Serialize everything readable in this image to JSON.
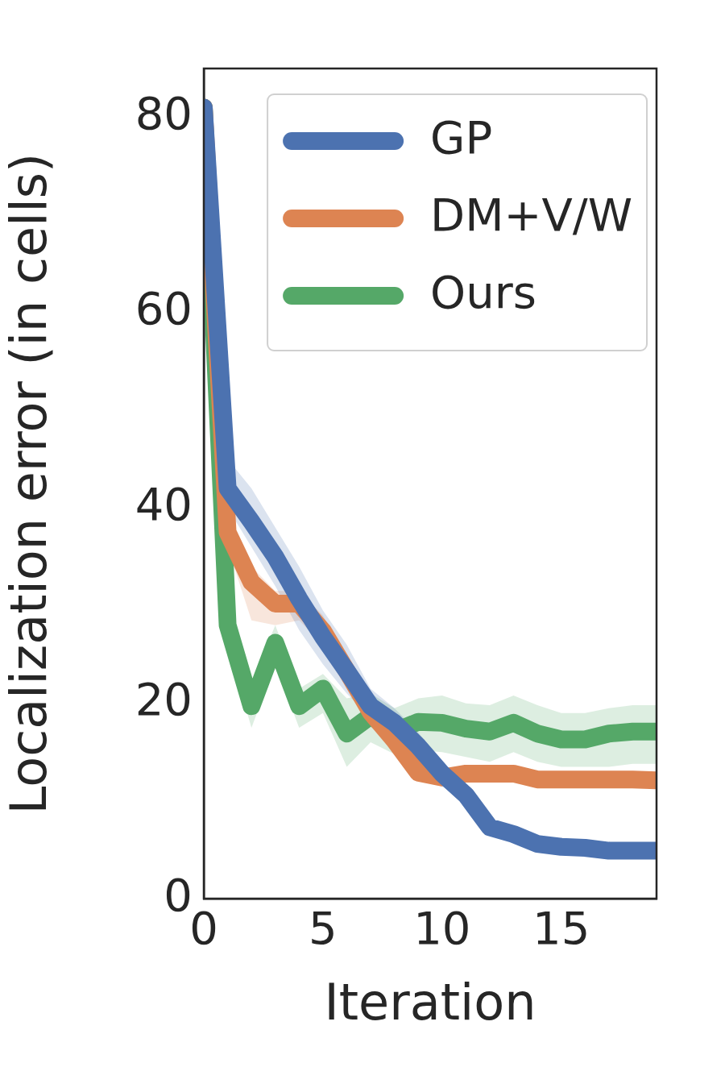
{
  "chart_data": {
    "type": "line",
    "xlabel": "Iteration",
    "ylabel": "Localization error (in cells)",
    "x": [
      0,
      1,
      2,
      3,
      4,
      5,
      6,
      7,
      8,
      9,
      10,
      11,
      12,
      13,
      14,
      15,
      16,
      17,
      18,
      19
    ],
    "xlim": [
      0,
      19
    ],
    "xticks": [
      0,
      5,
      10,
      15
    ],
    "ylim": [
      0,
      85
    ],
    "yticks": [
      0,
      20,
      40,
      60,
      80
    ],
    "grid": false,
    "legend": "top right",
    "marker": "none",
    "line_style": "solid",
    "series": [
      {
        "name": "GP",
        "color": "#4c72b0",
        "values": [
          81,
          42,
          38.6,
          35,
          30.7,
          26.8,
          23.3,
          19.7,
          18,
          15.6,
          12.8,
          10.6,
          7.3,
          6.6,
          5.6,
          5.3,
          5.2,
          4.9,
          4.9,
          4.9
        ],
        "lower": [
          80,
          40,
          36,
          32,
          27.5,
          24,
          21,
          18.5,
          16.5,
          14,
          11.5,
          10,
          6.8,
          6.2,
          5.3,
          5,
          4.9,
          4.7,
          4.7,
          4.7
        ],
        "upper": [
          82,
          45,
          42,
          38,
          34,
          29.5,
          26,
          21.5,
          19.5,
          17,
          14,
          11.5,
          8,
          7,
          5.9,
          5.6,
          5.5,
          5.1,
          5.1,
          5.1
        ]
      },
      {
        "name": "DM+V/W",
        "color": "#dd8452",
        "values": [
          81,
          37.5,
          32.4,
          30.2,
          30.2,
          27.4,
          23.3,
          19.1,
          16.2,
          12.9,
          12.4,
          12.8,
          12.8,
          12.8,
          12.2,
          12.2,
          12.2,
          12.2,
          12.2,
          12.1
        ],
        "lower": [
          80,
          36,
          28.5,
          28,
          28.5,
          26,
          22,
          18,
          15,
          12.3,
          12,
          12.3,
          12.3,
          12.3,
          11.8,
          11.8,
          11.8,
          11.8,
          11.8,
          11.6
        ],
        "upper": [
          82,
          39,
          34,
          31.5,
          31.5,
          29,
          24.5,
          20,
          17.2,
          13.5,
          12.8,
          13.3,
          13.3,
          13.3,
          12.6,
          12.6,
          12.6,
          12.6,
          12.6,
          12.6
        ]
      },
      {
        "name": "Ours",
        "color": "#55a868",
        "values": [
          81,
          28,
          19.7,
          26.2,
          19.7,
          21.5,
          16.9,
          18.7,
          17.1,
          18.1,
          18,
          17.4,
          17.1,
          18,
          16.9,
          16.3,
          16.3,
          16.9,
          17.1,
          17.1
        ],
        "lower": [
          80,
          26,
          17.5,
          24,
          17.5,
          19,
          13.5,
          16,
          14.8,
          15.2,
          15,
          14.5,
          14,
          15,
          14,
          13.5,
          13.5,
          13.5,
          13.8,
          13.8
        ],
        "upper": [
          82,
          30,
          22,
          28,
          21.5,
          23,
          20.5,
          21,
          19.5,
          20.5,
          20.8,
          20,
          19.8,
          20.8,
          19.8,
          19,
          19,
          19.5,
          19.8,
          19.8
        ]
      }
    ]
  }
}
